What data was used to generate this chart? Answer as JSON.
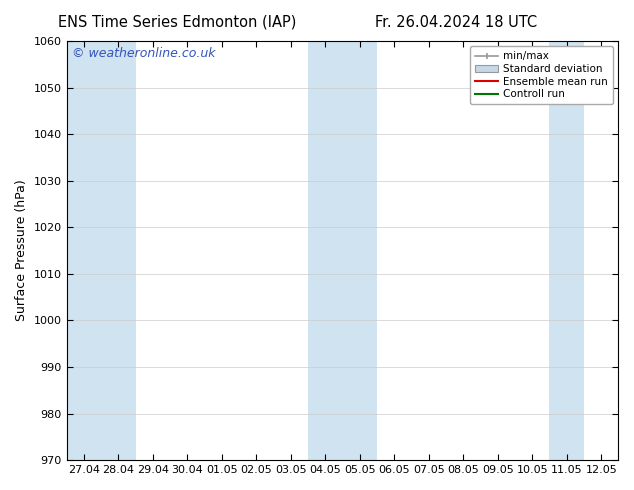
{
  "title_left": "ENS Time Series Edmonton (IAP)",
  "title_right": "Fr. 26.04.2024 18 UTC",
  "ylabel": "Surface Pressure (hPa)",
  "ylim": [
    970,
    1060
  ],
  "yticks": [
    970,
    980,
    990,
    1000,
    1010,
    1020,
    1030,
    1040,
    1050,
    1060
  ],
  "x_labels": [
    "27.04",
    "28.04",
    "29.04",
    "30.04",
    "01.05",
    "02.05",
    "03.05",
    "04.05",
    "05.05",
    "06.05",
    "07.05",
    "08.05",
    "09.05",
    "10.05",
    "11.05",
    "12.05"
  ],
  "x_dates": [
    "2024-04-27",
    "2024-04-28",
    "2024-04-29",
    "2024-04-30",
    "2024-05-01",
    "2024-05-02",
    "2024-05-03",
    "2024-05-04",
    "2024-05-05",
    "2024-05-06",
    "2024-05-07",
    "2024-05-08",
    "2024-05-09",
    "2024-05-10",
    "2024-05-11",
    "2024-05-12"
  ],
  "shaded_indices": [
    0,
    1,
    7,
    8,
    14
  ],
  "watermark": "© weatheronline.co.uk",
  "watermark_color": "#3355bb",
  "bg_color": "#ffffff",
  "plot_bg_color": "#ffffff",
  "shaded_color": "#cfe3f0",
  "legend_labels": [
    "min/max",
    "Standard deviation",
    "Ensemble mean run",
    "Controll run"
  ],
  "legend_line_color": "#999999",
  "legend_std_color": "#c5d8e8",
  "legend_ens_color": "#dd0000",
  "legend_ctrl_color": "#007700",
  "title_fontsize": 10.5,
  "label_fontsize": 9,
  "tick_fontsize": 8,
  "watermark_fontsize": 9
}
